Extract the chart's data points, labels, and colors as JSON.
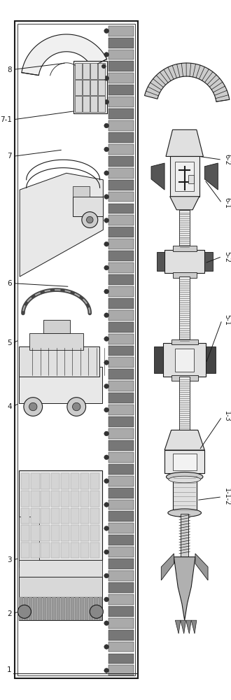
{
  "bg_color": "#ffffff",
  "line_color": "#1a1a1a",
  "gray1": "#bbbbbb",
  "gray2": "#888888",
  "gray3": "#555555",
  "gray4": "#dddddd",
  "gray5": "#444444"
}
